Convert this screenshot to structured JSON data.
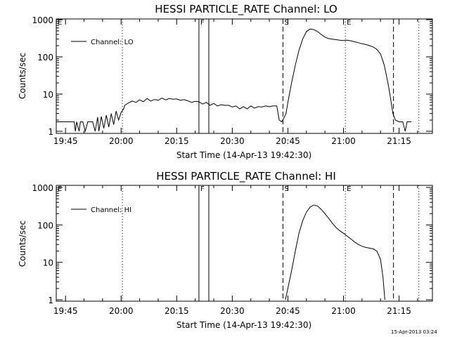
{
  "footer": "15-Apr-2013 03:24",
  "chart_data": [
    {
      "type": "line",
      "title": "HESSI PARTICLE_RATE Channel: LO",
      "xlabel": "Start Time (14-Apr-13 19:42:30)",
      "ylabel": "Counts/sec",
      "yscale": "log",
      "ylim": [
        1,
        1000
      ],
      "xlim": [
        "19:42:30",
        "21:24:00"
      ],
      "x_tick_labels": [
        "19:45",
        "20:00",
        "20:15",
        "20:30",
        "20:45",
        "21:00",
        "21:15"
      ],
      "y_tick_labels": [
        "1",
        "10",
        "100",
        "1000"
      ],
      "legend": {
        "position": "top-left",
        "label": "Channel: LO"
      },
      "markers": [
        {
          "label": "E",
          "time": "19:42:30",
          "style": "solid"
        },
        {
          "label": "",
          "time": "20:00:20",
          "style": "dotted"
        },
        {
          "label": "F",
          "time": "20:21:00",
          "style": "solid"
        },
        {
          "label": "",
          "time": "20:23:40",
          "style": "solid"
        },
        {
          "label": "S",
          "time": "20:43:40",
          "style": "dashed"
        },
        {
          "label": "E",
          "time": "21:00:30",
          "style": "dotted"
        },
        {
          "label": "",
          "time": "21:13:30",
          "style": "dashed"
        },
        {
          "label": "",
          "time": "21:20:20",
          "style": "dotted"
        }
      ],
      "series": [
        {
          "name": "Channel: LO",
          "x": [
            "19:42:30",
            "19:45:00",
            "19:47:20",
            "19:47:40",
            "19:48:00",
            "19:48:40",
            "19:49:00",
            "19:49:40",
            "19:50:20",
            "19:51:00",
            "19:52:20",
            "19:53:00",
            "19:53:40",
            "19:54:00",
            "19:54:40",
            "19:55:20",
            "19:56:00",
            "19:56:40",
            "19:57:20",
            "19:58:00",
            "19:58:40",
            "19:59:20",
            "20:00:00",
            "20:00:40",
            "20:01:00",
            "20:02:00",
            "20:03:00",
            "20:04:00",
            "20:05:00",
            "20:06:00",
            "20:07:00",
            "20:08:00",
            "20:09:00",
            "20:10:00",
            "20:11:00",
            "20:12:00",
            "20:13:00",
            "20:14:00",
            "20:15:00",
            "20:16:00",
            "20:17:00",
            "20:18:00",
            "20:19:00",
            "20:20:00",
            "20:21:00",
            "20:22:00",
            "20:23:00",
            "20:24:00",
            "20:25:00",
            "20:26:00",
            "20:27:00",
            "20:28:00",
            "20:29:00",
            "20:30:00",
            "20:31:00",
            "20:32:00",
            "20:33:00",
            "20:34:00",
            "20:35:00",
            "20:36:00",
            "20:37:00",
            "20:38:00",
            "20:39:00",
            "20:40:00",
            "20:41:00",
            "20:42:00",
            "20:42:40",
            "20:43:20",
            "20:43:50",
            "20:44:30",
            "20:45:00",
            "20:46:00",
            "20:47:00",
            "20:48:00",
            "20:49:00",
            "20:50:00",
            "20:51:00",
            "20:52:00",
            "20:53:00",
            "20:54:00",
            "20:55:00",
            "20:56:00",
            "20:57:00",
            "20:58:00",
            "20:59:00",
            "21:00:00",
            "21:01:00",
            "21:02:00",
            "21:03:00",
            "21:04:00",
            "21:05:00",
            "21:06:00",
            "21:07:00",
            "21:08:00",
            "21:09:00",
            "21:10:00",
            "21:11:00",
            "21:12:00",
            "21:12:40",
            "21:13:20",
            "21:14:00",
            "21:15:00",
            "21:16:00",
            "21:16:40",
            "21:17:10",
            "21:17:40",
            "21:18:20"
          ],
          "y": [
            1.8,
            1.8,
            1.8,
            1,
            1.8,
            1,
            1.8,
            1.8,
            1,
            1.8,
            1.8,
            1,
            2.4,
            1,
            2.5,
            1.2,
            2.7,
            1.3,
            3.0,
            1.5,
            3.5,
            2.0,
            3.2,
            4.0,
            5.0,
            5.8,
            6.5,
            6.0,
            7.0,
            6.2,
            7.6,
            6.5,
            7.2,
            6.8,
            7.8,
            7.0,
            7.6,
            7.3,
            7.4,
            6.8,
            7.1,
            6.6,
            6.0,
            6.4,
            6.2,
            5.4,
            6.0,
            5.0,
            5.6,
            4.8,
            5.2,
            5.0,
            5.0,
            4.5,
            4.8,
            4.0,
            4.6,
            4.0,
            4.8,
            4.2,
            4.6,
            4.5,
            4.8,
            4.6,
            4.8,
            4.8,
            2.0,
            1.8,
            2.2,
            3.0,
            6.0,
            20,
            60,
            150,
            300,
            480,
            560,
            540,
            480,
            400,
            340,
            310,
            300,
            290,
            280,
            275,
            280,
            270,
            255,
            240,
            225,
            215,
            200,
            185,
            160,
            120,
            60,
            20,
            8,
            3,
            2.0,
            1.8,
            1.8,
            1.0,
            1.8,
            1.8,
            1.8
          ]
        }
      ]
    },
    {
      "type": "line",
      "title": "HESSI PARTICLE_RATE Channel: HI",
      "xlabel": "Start Time (14-Apr-13 19:42:30)",
      "ylabel": "Counts/sec",
      "yscale": "log",
      "ylim": [
        1,
        1000
      ],
      "xlim": [
        "19:42:30",
        "21:24:00"
      ],
      "x_tick_labels": [
        "19:45",
        "20:00",
        "20:15",
        "20:30",
        "20:45",
        "21:00",
        "21:15"
      ],
      "y_tick_labels": [
        "1",
        "10",
        "100",
        "1000"
      ],
      "legend": {
        "position": "top-left",
        "label": "Channel: HI"
      },
      "markers": [
        {
          "label": "E",
          "time": "19:42:30",
          "style": "solid"
        },
        {
          "label": "",
          "time": "20:00:20",
          "style": "dotted"
        },
        {
          "label": "F",
          "time": "20:21:00",
          "style": "solid"
        },
        {
          "label": "",
          "time": "20:23:40",
          "style": "solid"
        },
        {
          "label": "S",
          "time": "20:43:40",
          "style": "dashed"
        },
        {
          "label": "E",
          "time": "21:00:30",
          "style": "dotted"
        },
        {
          "label": "",
          "time": "21:13:30",
          "style": "dashed"
        },
        {
          "label": "",
          "time": "21:20:20",
          "style": "dotted"
        }
      ],
      "series": [
        {
          "name": "Channel: HI",
          "x": [
            "20:44:20",
            "20:45:00",
            "20:46:00",
            "20:47:00",
            "20:48:00",
            "20:49:00",
            "20:50:00",
            "20:51:00",
            "20:52:00",
            "20:53:00",
            "20:54:00",
            "20:55:00",
            "20:56:00",
            "20:57:00",
            "20:58:00",
            "20:59:00",
            "21:00:00",
            "21:01:00",
            "21:02:00",
            "21:03:00",
            "21:04:00",
            "21:05:00",
            "21:06:00",
            "21:07:00",
            "21:08:00",
            "21:09:00",
            "21:10:00",
            "21:10:40",
            "21:11:10"
          ],
          "y": [
            1.0,
            2.0,
            6,
            20,
            60,
            130,
            220,
            300,
            340,
            320,
            260,
            200,
            150,
            110,
            85,
            70,
            60,
            50,
            42,
            35,
            30,
            27,
            25,
            24,
            23,
            20,
            12,
            4,
            1.0
          ]
        }
      ]
    }
  ]
}
